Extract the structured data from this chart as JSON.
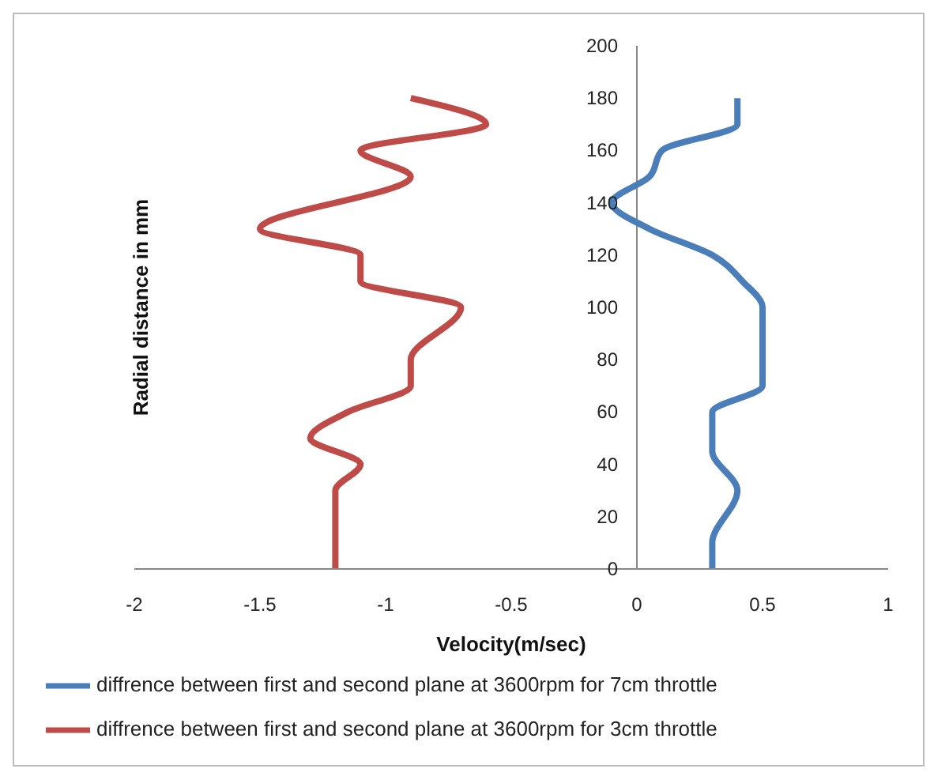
{
  "chart_data": {
    "type": "line",
    "xlabel": "Velocity(m/sec)",
    "ylabel": "Radial distance  in mm",
    "xlim": [
      -2,
      1
    ],
    "xticks": [
      -2,
      -1.5,
      -1,
      -0.5,
      0,
      0.5,
      1
    ],
    "ylim": [
      0,
      200
    ],
    "yticks": [
      0,
      20,
      40,
      60,
      80,
      100,
      120,
      140,
      160,
      180,
      200
    ],
    "grid": false,
    "legend": "bottom",
    "marker": "none",
    "series": [
      {
        "name": "diffrence between first and second plane at 3600rpm for 7cm throttle",
        "color": "#4a7ebb",
        "x": [
          0.3,
          0.3,
          0.4,
          0.3,
          0.3,
          0.5,
          0.5,
          0.42,
          0.3,
          0.05,
          -0.1,
          0.05,
          0.1,
          0.4,
          0.4
        ],
        "values": [
          0,
          10,
          30,
          45,
          60,
          70,
          100,
          110,
          120,
          130,
          140,
          150,
          160,
          170,
          180
        ]
      },
      {
        "name": "diffrence between first and second plane at 3600rpm for 3cm throttle",
        "color": "#be4b48",
        "x": [
          -1.2,
          -1.2,
          -1.1,
          -1.3,
          -1.15,
          -0.9,
          -0.9,
          -0.7,
          -1.1,
          -1.1,
          -1.5,
          -0.9,
          -1.1,
          -0.6,
          -0.9
        ],
        "values": [
          0,
          30,
          40,
          50,
          60,
          70,
          80,
          100,
          110,
          120,
          130,
          150,
          160,
          170,
          180
        ]
      }
    ]
  }
}
